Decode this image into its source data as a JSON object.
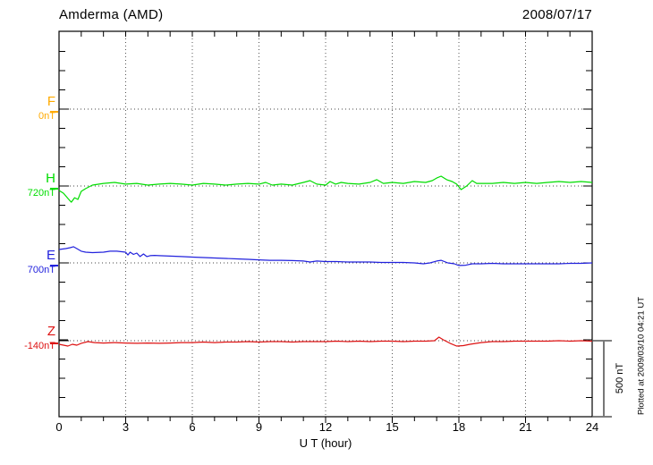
{
  "header": {
    "title": "Amderma (AMD)",
    "date": "2008/07/17"
  },
  "chart_data": {
    "type": "line",
    "title": "Amderma (AMD)",
    "date": "2008/07/17",
    "xlabel": "U T (hour)",
    "x_range": [
      0,
      24
    ],
    "x_major_ticks": [
      0,
      3,
      6,
      9,
      12,
      15,
      18,
      21,
      24
    ],
    "x_tick_labels": [
      "0",
      "3",
      "6",
      "9",
      "12",
      "15",
      "18",
      "21",
      "24"
    ],
    "x_minor_tick_interval_hours": 1,
    "grid": "dotted vertical lines every 3 h, dotted horizontal baseline per component",
    "legend_position": "left margin, one colored label per component baseline",
    "y_scale_bar": {
      "label": "500 nT",
      "nT": 500
    },
    "baseline_separation_nT": 500,
    "note": "Plotted at 2009/03/10 04:21 UT",
    "points_format": "[UT hour, deviation in nT from component baseline]",
    "series": [
      {
        "component": "F",
        "baseline_label": "0nT",
        "baseline_nT": 0,
        "color": "#ffaa00",
        "points": []
      },
      {
        "component": "H",
        "baseline_label": "720nT",
        "baseline_nT": 720,
        "color": "#00dd00",
        "points": [
          [
            0,
            -29
          ],
          [
            0.2,
            -47
          ],
          [
            0.4,
            -81
          ],
          [
            0.55,
            -105
          ],
          [
            0.7,
            -76
          ],
          [
            0.85,
            -87
          ],
          [
            1,
            -35
          ],
          [
            1.2,
            -17
          ],
          [
            1.5,
            6
          ],
          [
            2,
            17
          ],
          [
            2.5,
            23
          ],
          [
            3,
            12
          ],
          [
            3.5,
            17
          ],
          [
            4,
            6
          ],
          [
            4.5,
            12
          ],
          [
            5,
            17
          ],
          [
            5.5,
            12
          ],
          [
            6,
            6
          ],
          [
            6.5,
            17
          ],
          [
            7,
            12
          ],
          [
            7.5,
            6
          ],
          [
            8,
            12
          ],
          [
            8.5,
            17
          ],
          [
            9,
            12
          ],
          [
            9.3,
            23
          ],
          [
            9.6,
            6
          ],
          [
            10,
            12
          ],
          [
            10.5,
            6
          ],
          [
            11,
            23
          ],
          [
            11.3,
            35
          ],
          [
            11.6,
            12
          ],
          [
            12,
            6
          ],
          [
            12.2,
            29
          ],
          [
            12.45,
            12
          ],
          [
            12.7,
            23
          ],
          [
            13,
            17
          ],
          [
            13.5,
            12
          ],
          [
            14,
            23
          ],
          [
            14.3,
            41
          ],
          [
            14.6,
            17
          ],
          [
            15,
            23
          ],
          [
            15.5,
            17
          ],
          [
            16,
            29
          ],
          [
            16.5,
            23
          ],
          [
            16.8,
            35
          ],
          [
            17,
            52
          ],
          [
            17.2,
            64
          ],
          [
            17.45,
            41
          ],
          [
            17.7,
            29
          ],
          [
            17.9,
            12
          ],
          [
            18.1,
            -23
          ],
          [
            18.35,
            0
          ],
          [
            18.6,
            35
          ],
          [
            18.8,
            17
          ],
          [
            19,
            17
          ],
          [
            19.5,
            17
          ],
          [
            20,
            23
          ],
          [
            20.5,
            17
          ],
          [
            21,
            23
          ],
          [
            21.5,
            17
          ],
          [
            22,
            23
          ],
          [
            22.5,
            29
          ],
          [
            23,
            23
          ],
          [
            23.5,
            29
          ],
          [
            24,
            23
          ]
        ]
      },
      {
        "component": "E",
        "baseline_label": "700nT",
        "baseline_nT": 700,
        "color": "#2222dd",
        "points": [
          [
            0,
            87
          ],
          [
            0.3,
            93
          ],
          [
            0.5,
            99
          ],
          [
            0.65,
            105
          ],
          [
            0.8,
            93
          ],
          [
            1,
            76
          ],
          [
            1.2,
            70
          ],
          [
            1.5,
            67
          ],
          [
            2,
            70
          ],
          [
            2.3,
            76
          ],
          [
            2.6,
            76
          ],
          [
            3,
            70
          ],
          [
            3.1,
            52
          ],
          [
            3.2,
            70
          ],
          [
            3.35,
            55
          ],
          [
            3.5,
            64
          ],
          [
            3.65,
            41
          ],
          [
            3.8,
            58
          ],
          [
            3.95,
            41
          ],
          [
            4.1,
            47
          ],
          [
            4.3,
            49
          ],
          [
            4.5,
            47
          ],
          [
            5,
            44
          ],
          [
            5.5,
            41
          ],
          [
            6,
            38
          ],
          [
            6.5,
            35
          ],
          [
            7,
            32
          ],
          [
            7.5,
            29
          ],
          [
            8,
            26
          ],
          [
            8.5,
            23
          ],
          [
            9,
            20
          ],
          [
            9.5,
            17
          ],
          [
            10,
            17
          ],
          [
            10.5,
            15
          ],
          [
            11,
            12
          ],
          [
            11.3,
            6
          ],
          [
            11.6,
            12
          ],
          [
            12,
            9
          ],
          [
            12.5,
            9
          ],
          [
            13,
            6
          ],
          [
            13.5,
            6
          ],
          [
            14,
            6
          ],
          [
            14.5,
            3
          ],
          [
            15,
            3
          ],
          [
            15.5,
            3
          ],
          [
            16,
            0
          ],
          [
            16.4,
            -6
          ],
          [
            16.7,
            0
          ],
          [
            17,
            12
          ],
          [
            17.2,
            17
          ],
          [
            17.5,
            0
          ],
          [
            17.8,
            -6
          ],
          [
            18,
            -17
          ],
          [
            18.3,
            -15
          ],
          [
            18.6,
            -6
          ],
          [
            19,
            -6
          ],
          [
            19.5,
            -3
          ],
          [
            20,
            -6
          ],
          [
            20.5,
            -6
          ],
          [
            21,
            -6
          ],
          [
            21.5,
            -6
          ],
          [
            22,
            -6
          ],
          [
            22.5,
            -6
          ],
          [
            23,
            -3
          ],
          [
            23.5,
            -3
          ],
          [
            24,
            0
          ]
        ]
      },
      {
        "component": "Z",
        "baseline_label": "-140nT",
        "baseline_nT": -140,
        "color": "#dd1111",
        "points": [
          [
            0,
            -23
          ],
          [
            0.2,
            -29
          ],
          [
            0.4,
            -35
          ],
          [
            0.6,
            -23
          ],
          [
            0.8,
            -29
          ],
          [
            1,
            -17
          ],
          [
            1.3,
            -6
          ],
          [
            1.6,
            -12
          ],
          [
            2,
            -15
          ],
          [
            2.5,
            -12
          ],
          [
            3,
            -15
          ],
          [
            3.5,
            -17
          ],
          [
            4,
            -15
          ],
          [
            4.5,
            -17
          ],
          [
            5,
            -15
          ],
          [
            5.5,
            -12
          ],
          [
            6,
            -12
          ],
          [
            6.5,
            -9
          ],
          [
            7,
            -12
          ],
          [
            7.5,
            -9
          ],
          [
            8,
            -9
          ],
          [
            8.5,
            -6
          ],
          [
            9,
            -9
          ],
          [
            9.5,
            -6
          ],
          [
            10,
            -6
          ],
          [
            10.5,
            -9
          ],
          [
            11,
            -6
          ],
          [
            11.5,
            -6
          ],
          [
            12,
            -6
          ],
          [
            12.5,
            -3
          ],
          [
            13,
            -6
          ],
          [
            13.5,
            -3
          ],
          [
            14,
            -6
          ],
          [
            14.5,
            -3
          ],
          [
            15,
            -3
          ],
          [
            15.5,
            -6
          ],
          [
            16,
            -3
          ],
          [
            16.5,
            -3
          ],
          [
            16.9,
            0
          ],
          [
            17.1,
            23
          ],
          [
            17.3,
            6
          ],
          [
            17.6,
            -17
          ],
          [
            17.9,
            -35
          ],
          [
            18.2,
            -32
          ],
          [
            18.5,
            -23
          ],
          [
            19,
            -12
          ],
          [
            19.5,
            -6
          ],
          [
            20,
            -6
          ],
          [
            20.5,
            -3
          ],
          [
            21,
            -3
          ],
          [
            21.5,
            -3
          ],
          [
            22,
            -3
          ],
          [
            22.5,
            0
          ],
          [
            23,
            -3
          ],
          [
            23.5,
            0
          ],
          [
            24,
            -3
          ]
        ]
      }
    ]
  }
}
